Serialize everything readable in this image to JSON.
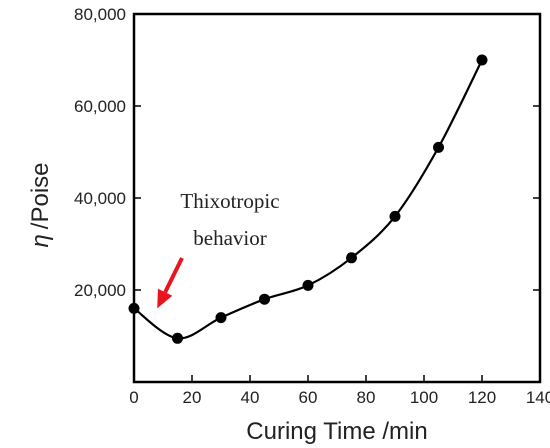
{
  "chart_data": {
    "type": "line",
    "xlabel": "Curing Time /min",
    "ylabel_symbol": "η",
    "ylabel": "/Poise",
    "xlim": [
      0,
      140
    ],
    "ylim": [
      0,
      80000
    ],
    "xticks": [
      0,
      20,
      40,
      60,
      80,
      100,
      120,
      140
    ],
    "yticks": [
      20000,
      40000,
      60000,
      80000
    ],
    "ytick_labels": [
      "20,000",
      "40,000",
      "60,000",
      "80,000"
    ],
    "grid": false,
    "series": [
      {
        "x": [
          0,
          15,
          30,
          45,
          60,
          75,
          90,
          105,
          120
        ],
        "y": [
          16000,
          9500,
          14000,
          18000,
          21000,
          27000,
          36000,
          51000,
          70000
        ],
        "color": "#000000",
        "marker": "circle",
        "smooth": true
      }
    ],
    "annotations": [
      {
        "lines": [
          "Thixotropic",
          "behavior"
        ],
        "arrow_color": "#e8141e",
        "arrow_target": {
          "x": 8,
          "y": 16000
        }
      }
    ]
  }
}
